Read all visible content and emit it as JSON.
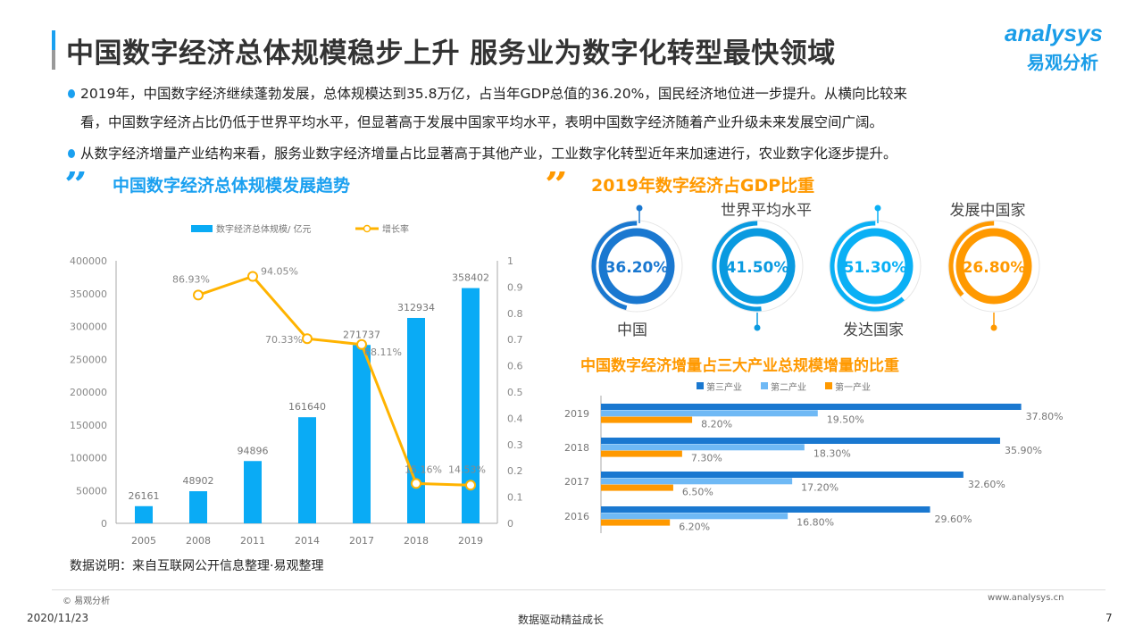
{
  "title": "中国数字经济总体规模稳步上升 服务业为数字化转型最快领域",
  "logo": {
    "en": "analysys",
    "cn": "易观分析"
  },
  "bullets": [
    "2019年，中国数字经济继续蓬勃发展，总体规模达到35.8万亿，占当年GDP总值的36.20%，国民经济地位进一步提升。从横向比较来",
    "看，中国数字经济占比仍低于世界平均水平，但显著高于发展中国家平均水平，表明中国数字经济随着产业升级未来发展空间广阔。",
    "从数字经济增量产业结构来看，服务业数字经济增量占比显著高于其他产业，工业数字化转型近年来加速进行，农业数字化逐步提升。"
  ],
  "sections": {
    "left": "中国数字经济总体规模发展趋势",
    "right": "2019年数字经济占GDP比重"
  },
  "source": "数据说明：来自互联网公开信息整理·易观整理",
  "footer": {
    "copyright": "© 易观分析",
    "url": "www.analysys.cn",
    "date": "2020/11/23",
    "slogan": "数据驱动精益成长",
    "page": "7"
  },
  "colors": {
    "blue": "#0aabf5",
    "orange": "#ffb300",
    "dark_blue": "#1a78d0",
    "light_blue": "#6fb9f5",
    "accent_orange": "#ff9900"
  },
  "chart_data": [
    {
      "type": "bar",
      "title": "中国数字经济总体规模发展趋势",
      "categories": [
        "2005",
        "2008",
        "2011",
        "2014",
        "2017",
        "2018",
        "2019"
      ],
      "series": [
        {
          "name": "数字经济总体规模/ 亿元",
          "type": "bar",
          "axis": "left",
          "values": [
            26161,
            48902,
            94896,
            161640,
            271737,
            312934,
            358402
          ],
          "labels": [
            "26161",
            "48902",
            "94896",
            "161640",
            "271737",
            "312934",
            "358402"
          ]
        },
        {
          "name": "增长率",
          "type": "line",
          "axis": "right",
          "values": [
            null,
            0.8693,
            0.9405,
            0.7033,
            0.6811,
            0.1516,
            0.1453
          ],
          "labels": [
            "",
            "86.93%",
            "94.05%",
            "70.33%",
            "68.11%",
            "15.16%",
            "14.53%"
          ]
        }
      ],
      "ylim": [
        0,
        400000
      ],
      "yticks": [
        "0",
        "50000",
        "100000",
        "150000",
        "200000",
        "250000",
        "300000",
        "350000",
        "400000"
      ],
      "y2lim": [
        0,
        1
      ],
      "y2ticks": [
        "0",
        "0.1",
        "0.2",
        "0.3",
        "0.4",
        "0.5",
        "0.6",
        "0.7",
        "0.8",
        "0.9",
        "1"
      ],
      "legend": "top"
    },
    {
      "type": "pie",
      "title": "2019年数字经济占GDP比重",
      "items": [
        {
          "name": "中国",
          "value": 36.2,
          "label": "36.20%",
          "color": "#1a78d0"
        },
        {
          "name": "世界平均水平",
          "value": 41.5,
          "label": "41.50%",
          "color": "#0a9ae0"
        },
        {
          "name": "发达国家",
          "value": 51.3,
          "label": "51.30%",
          "color": "#0ab0f5"
        },
        {
          "name": "发展中国家",
          "value": 26.8,
          "label": "26.80%",
          "color": "#ff9900"
        }
      ]
    },
    {
      "type": "bar",
      "orientation": "horizontal",
      "title": "中国数字经济增量占三大产业总规模增量的比重",
      "categories": [
        "2019",
        "2018",
        "2017",
        "2016"
      ],
      "series": [
        {
          "name": "第三产业",
          "color": "#1a78d0",
          "values": [
            37.8,
            35.9,
            32.6,
            29.6
          ],
          "labels": [
            "37.80%",
            "35.90%",
            "32.60%",
            "29.60%"
          ]
        },
        {
          "name": "第二产业",
          "color": "#6fb9f5",
          "values": [
            19.5,
            18.3,
            17.2,
            16.8
          ],
          "labels": [
            "19.50%",
            "18.30%",
            "17.20%",
            "16.80%"
          ]
        },
        {
          "name": "第一产业",
          "color": "#ff9900",
          "values": [
            8.2,
            7.3,
            6.5,
            6.2
          ],
          "labels": [
            "8.20%",
            "7.30%",
            "6.50%",
            "6.20%"
          ]
        }
      ],
      "legend": "top"
    }
  ]
}
